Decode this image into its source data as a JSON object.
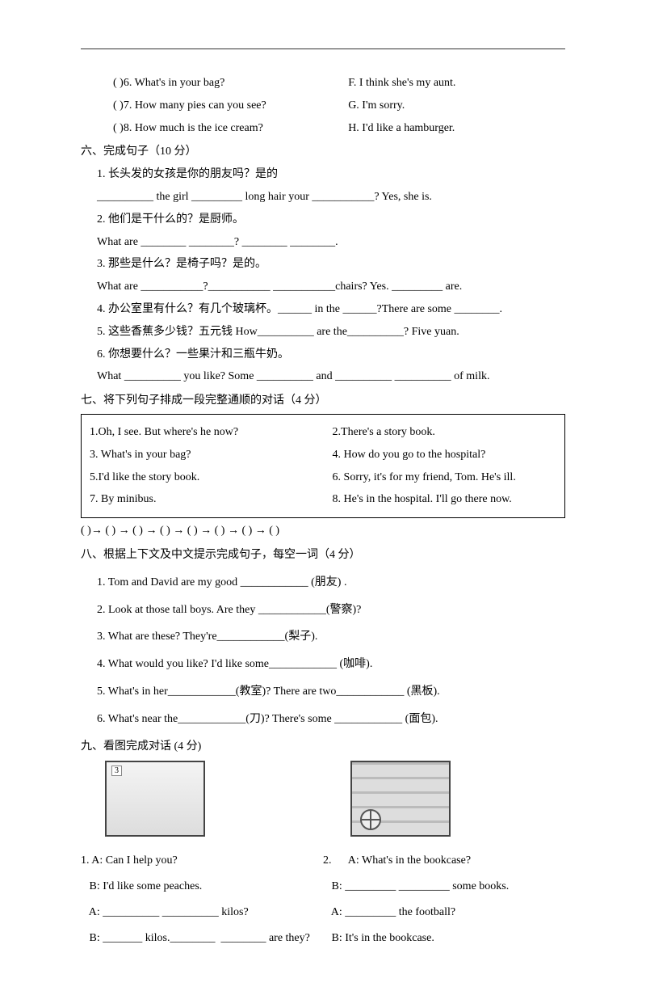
{
  "topMatches": [
    {
      "left": "(        )6. What's in your bag?",
      "right": "F. I think she's my aunt."
    },
    {
      "left": "(        )7. How many pies can you see?",
      "right": "G. I'm sorry."
    },
    {
      "left": "(        )8. How much is the ice cream?",
      "right": "H. I'd like a hamburger."
    }
  ],
  "section6": {
    "title": "六、完成句子（10 分）",
    "items": [
      "1. 长头发的女孩是你的朋友吗？是的",
      "__________ the girl _________ long hair your ___________? Yes, she is.",
      "2. 他们是干什么的？是厨师。",
      "What are ________  ________?  ________  ________.",
      "3. 那些是什么？是椅子吗？是的。",
      "What are ___________?___________  ___________chairs? Yes. _________ are.",
      "4. 办公室里有什么？有几个玻璃杯。______ in the  ______?There are some ________.",
      "5. 这些香蕉多少钱？五元钱 How__________ are the__________? Five yuan.",
      "6. 你想要什么？一些果汁和三瓶牛奶。",
      "What __________ you like? Some __________ and __________ __________ of milk."
    ]
  },
  "section7": {
    "title": "七、将下列句子排成一段完整通顺的对话（4 分）",
    "box": [
      {
        "l": "1.Oh, I see. But where's he now?",
        "r": "2.There's a story book."
      },
      {
        "l": "3. What's in your bag?",
        "r": "4. How do you go to the hospital?"
      },
      {
        "l": "5.I'd like the story book.",
        "r": "6. Sorry, it's for my friend, Tom. He's ill."
      },
      {
        "l": "7. By minibus.",
        "r": "8. He's in the hospital. I'll go there now."
      }
    ],
    "arrows": "(     )→ (     ) → (     ) → (     ) → (     ) → (     ) → (     ) → (     )"
  },
  "section8": {
    "title": "八、根据上下文及中文提示完成句子，每空一词（4 分）",
    "items": [
      "1. Tom and David are my good ____________ (朋友) .",
      "2. Look at those tall boys. Are they ____________(警察)?",
      "3. What are these? They're____________(梨子).",
      "4. What would you like? I'd like some____________ (咖啡).",
      "5. What's in her____________(教室)? There are two____________ (黑板).",
      "6. What's near the____________(刀)? There's some ____________ (面包)."
    ]
  },
  "section9": {
    "title": "九、看图完成对话  (4 分)",
    "colA": [
      "1. A: Can I help you?",
      "   B: I'd like some peaches.",
      "   A: __________ __________ kilos?",
      "   B: _______ kilos.________  ________ are they?"
    ],
    "colB": [
      "2.      A: What's in the bookcase?",
      "   B: _________ _________ some books.",
      "   A: _________ the football?",
      "   B: It's in the bookcase."
    ]
  }
}
